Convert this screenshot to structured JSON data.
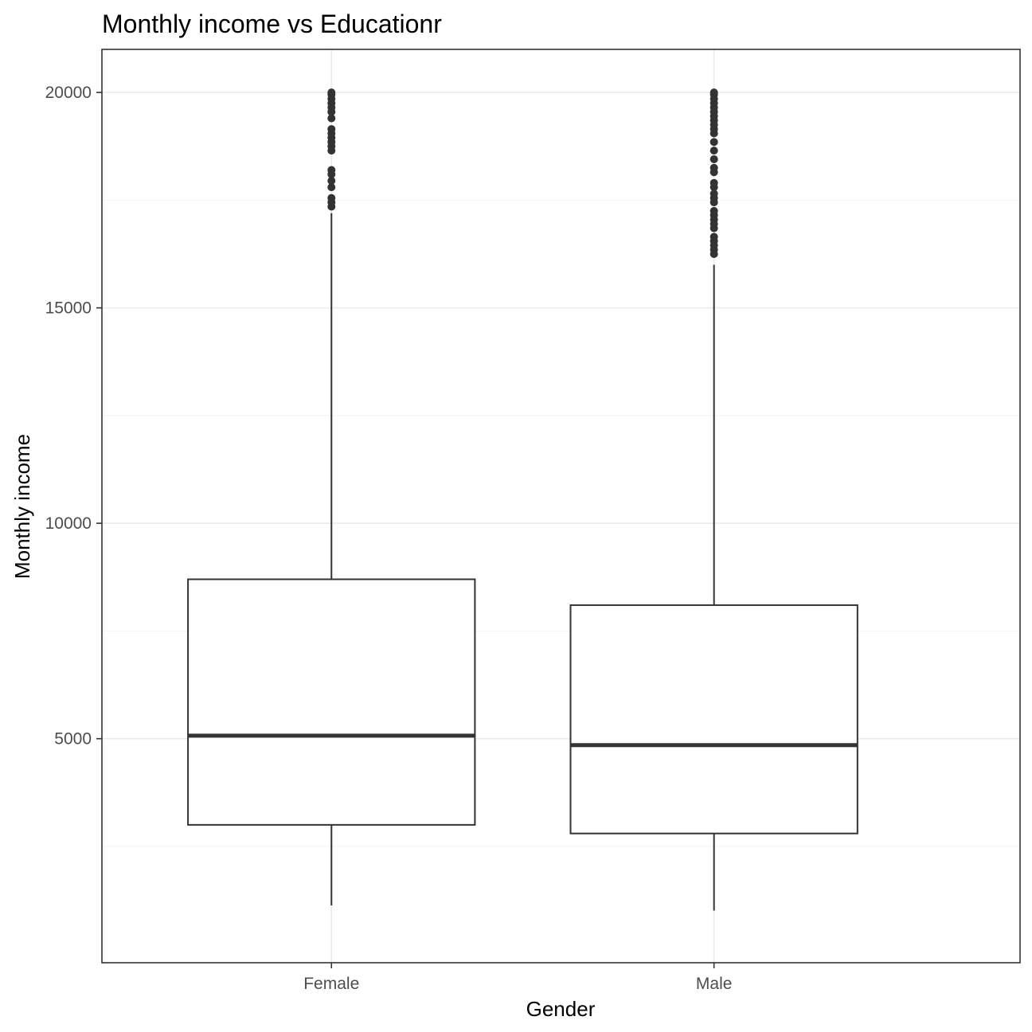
{
  "chart_data": {
    "type": "boxplot",
    "title": "Monthly income vs Educationr",
    "xlabel": "Gender",
    "ylabel": "Monthly income",
    "categories": [
      "Female",
      "Male"
    ],
    "ylim": [
      -200,
      21000
    ],
    "yticks": [
      5000,
      10000,
      15000,
      20000
    ],
    "grid": true,
    "boxes": [
      {
        "category": "Female",
        "whisker_low": 1130,
        "q1": 3000,
        "median": 5070,
        "q3": 8700,
        "whisker_high": 17200,
        "outliers": [
          17350,
          17450,
          17550,
          17800,
          17950,
          18100,
          18200,
          18650,
          18750,
          18850,
          18950,
          19050,
          19150,
          19400,
          19550,
          19650,
          19750,
          19850,
          19950,
          19999
        ]
      },
      {
        "category": "Male",
        "whisker_low": 1010,
        "q1": 2800,
        "median": 4850,
        "q3": 8100,
        "whisker_high": 16000,
        "outliers": [
          16250,
          16350,
          16450,
          16550,
          16650,
          16850,
          16950,
          17050,
          17150,
          17250,
          17450,
          17550,
          17650,
          17800,
          17900,
          18150,
          18250,
          18450,
          18650,
          18850,
          19050,
          19150,
          19250,
          19350,
          19450,
          19550,
          19650,
          19750,
          19850,
          19950,
          19999
        ]
      }
    ]
  }
}
